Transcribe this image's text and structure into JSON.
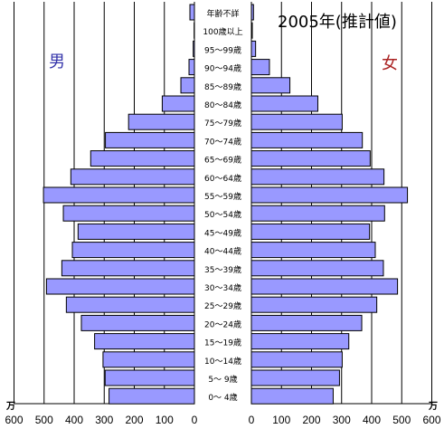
{
  "chart_data": {
    "type": "bar",
    "orientation": "horizontal-pyramid",
    "title": "2005年(推計値)",
    "unit_label": "万",
    "left_label": "男",
    "right_label": "女",
    "colors": {
      "bar": "#9999ff",
      "male_label": "#3333aa",
      "female_label": "#aa2222",
      "grid": "#000000"
    },
    "categories": [
      "年齢不詳",
      "100歳以上",
      "95～99歳",
      "90～94歳",
      "85～89歳",
      "80～84歳",
      "75～79歳",
      "70～74歳",
      "65～69歳",
      "60～64歳",
      "55～59歳",
      "50～54歳",
      "45～49歳",
      "40～44歳",
      "35～39歳",
      "30～34歳",
      "25～29歳",
      "20～24歳",
      "15～19歳",
      "10～14歳",
      "5～ 9歳",
      "0～ 4歳"
    ],
    "series": [
      {
        "name": "男",
        "values": [
          15,
          1,
          4,
          18,
          45,
          107,
          219,
          296,
          345,
          411,
          502,
          436,
          387,
          406,
          441,
          492,
          426,
          376,
          332,
          304,
          297,
          284
        ]
      },
      {
        "name": "女",
        "values": [
          7,
          3,
          14,
          60,
          128,
          221,
          302,
          369,
          395,
          441,
          519,
          443,
          393,
          412,
          439,
          486,
          417,
          367,
          324,
          302,
          293,
          272
        ]
      }
    ],
    "left_ticks": [
      600,
      500,
      400,
      300,
      200,
      100,
      0
    ],
    "right_ticks": [
      0,
      100,
      200,
      300,
      400,
      500,
      600
    ],
    "xlim": [
      0,
      600
    ],
    "grid": true,
    "legend": "none"
  }
}
